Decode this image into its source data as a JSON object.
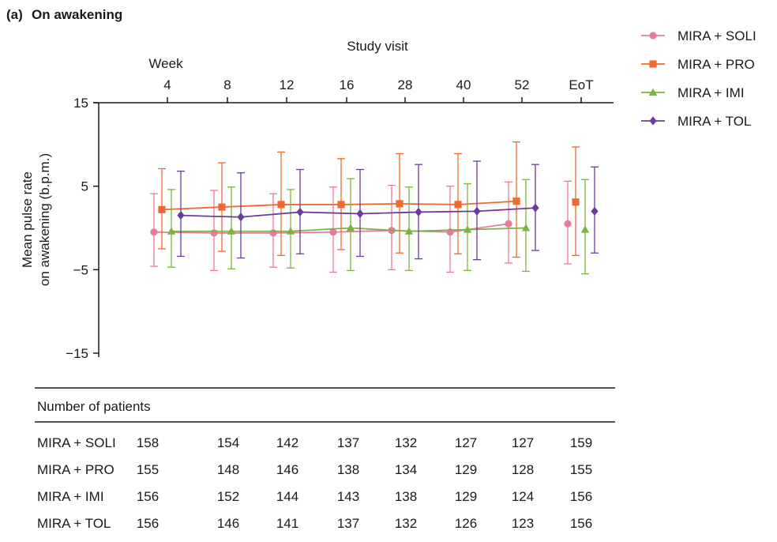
{
  "panel": {
    "label": "(a)",
    "title": "On awakening"
  },
  "chart_data": {
    "type": "line",
    "title": "On awakening",
    "x_axis_title": "Study visit",
    "x_axis_sublabel": "Week",
    "categories": [
      "4",
      "8",
      "12",
      "16",
      "28",
      "40",
      "52",
      "EoT"
    ],
    "ylabel_line1": "Mean pulse rate",
    "ylabel_line2": "on awakening (b.p.m.)",
    "ylim": [
      -15,
      15
    ],
    "yticks": [
      15,
      5,
      -5,
      -15
    ],
    "ytick_labels": [
      "15",
      "5",
      "−5",
      "−15"
    ],
    "grid": false,
    "legend_position": "top-right",
    "error_bars": true,
    "series": [
      {
        "name": "MIRA + SOLI",
        "color": "#e9799e",
        "marker": "circle",
        "values": [
          -0.5,
          -0.6,
          -0.6,
          -0.5,
          -0.3,
          -0.5,
          0.5,
          0.5
        ],
        "lower": [
          -4.6,
          -5.1,
          -4.7,
          -5.3,
          -5.0,
          -5.3,
          -4.2,
          -4.3
        ],
        "upper": [
          4.1,
          4.5,
          4.1,
          4.9,
          5.1,
          5.0,
          5.5,
          5.6
        ]
      },
      {
        "name": "MIRA + PRO",
        "color": "#ef6a33",
        "marker": "square",
        "values": [
          2.2,
          2.5,
          2.8,
          2.8,
          2.9,
          2.8,
          3.2,
          3.1
        ],
        "lower": [
          -2.5,
          -2.8,
          -3.3,
          -2.6,
          -3.0,
          -3.1,
          -3.5,
          -3.3
        ],
        "upper": [
          7.1,
          7.8,
          9.1,
          8.3,
          8.9,
          8.9,
          10.3,
          9.7
        ]
      },
      {
        "name": "MIRA + IMI",
        "color": "#7cb342",
        "marker": "triangle",
        "values": [
          -0.4,
          -0.4,
          -0.4,
          0.0,
          -0.4,
          -0.2,
          0.0,
          -0.2
        ],
        "lower": [
          -4.7,
          -4.9,
          -4.8,
          -5.1,
          -5.1,
          -5.1,
          -5.2,
          -5.5
        ],
        "upper": [
          4.6,
          4.9,
          4.6,
          5.9,
          4.9,
          5.3,
          5.8,
          5.8
        ]
      },
      {
        "name": "MIRA + TOL",
        "color": "#6a3d9a",
        "marker": "diamond",
        "values": [
          1.5,
          1.3,
          1.9,
          1.7,
          1.9,
          2.0,
          2.4,
          2.0
        ],
        "lower": [
          -3.4,
          -3.6,
          -3.1,
          -3.4,
          -3.7,
          -3.8,
          -2.7,
          -3.0
        ],
        "upper": [
          6.8,
          6.6,
          7.0,
          7.0,
          7.6,
          8.0,
          7.6,
          7.3
        ]
      }
    ]
  },
  "patients_table": {
    "header": "Number of patients",
    "rows": [
      {
        "label": "MIRA + SOLI",
        "counts": [
          "158",
          "154",
          "142",
          "137",
          "132",
          "127",
          "127",
          "159"
        ]
      },
      {
        "label": "MIRA + PRO",
        "counts": [
          "155",
          "148",
          "146",
          "138",
          "134",
          "129",
          "128",
          "155"
        ]
      },
      {
        "label": "MIRA + IMI",
        "counts": [
          "156",
          "152",
          "144",
          "143",
          "138",
          "129",
          "124",
          "156"
        ]
      },
      {
        "label": "MIRA + TOL",
        "counts": [
          "156",
          "146",
          "141",
          "137",
          "132",
          "126",
          "123",
          "156"
        ]
      }
    ]
  }
}
